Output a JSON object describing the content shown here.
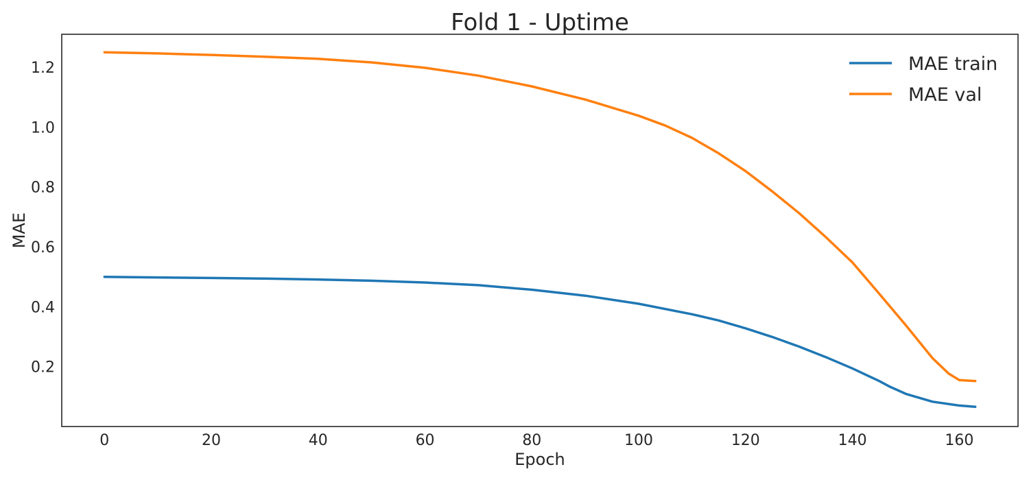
{
  "chart_data": {
    "type": "line",
    "title": "Fold 1 - Uptime",
    "xlabel": "Epoch",
    "ylabel": "MAE",
    "xlim": [
      -8,
      171
    ],
    "ylim": [
      0.0,
      1.31
    ],
    "grid": false,
    "legend_position": "top-right",
    "xticks": [
      0,
      20,
      40,
      60,
      80,
      100,
      120,
      140,
      160
    ],
    "yticks": [
      0.2,
      0.4,
      0.6,
      0.8,
      1.0,
      1.2
    ],
    "ytick_labels": [
      "0.2",
      "0.4",
      "0.6",
      "0.8",
      "1.0",
      "1.2"
    ],
    "series": [
      {
        "name": "MAE train",
        "color": "#1f77b4",
        "x": [
          0,
          10,
          20,
          30,
          40,
          50,
          60,
          70,
          80,
          90,
          100,
          110,
          115,
          120,
          125,
          130,
          135,
          140,
          145,
          147,
          150,
          155,
          160,
          163
        ],
        "y": [
          0.5,
          0.498,
          0.496,
          0.494,
          0.491,
          0.487,
          0.481,
          0.472,
          0.457,
          0.437,
          0.41,
          0.375,
          0.354,
          0.328,
          0.299,
          0.267,
          0.232,
          0.194,
          0.152,
          0.133,
          0.109,
          0.083,
          0.07,
          0.066
        ]
      },
      {
        "name": "MAE val",
        "color": "#ff7f0e",
        "x": [
          0,
          10,
          20,
          30,
          40,
          50,
          60,
          70,
          80,
          90,
          100,
          105,
          110,
          115,
          120,
          125,
          130,
          135,
          140,
          145,
          150,
          155,
          158,
          160,
          162,
          163
        ],
        "y": [
          1.25,
          1.246,
          1.241,
          1.235,
          1.228,
          1.216,
          1.198,
          1.172,
          1.136,
          1.092,
          1.038,
          1.005,
          0.964,
          0.912,
          0.853,
          0.785,
          0.713,
          0.633,
          0.548,
          0.444,
          0.338,
          0.228,
          0.177,
          0.155,
          0.153,
          0.152
        ]
      }
    ]
  }
}
